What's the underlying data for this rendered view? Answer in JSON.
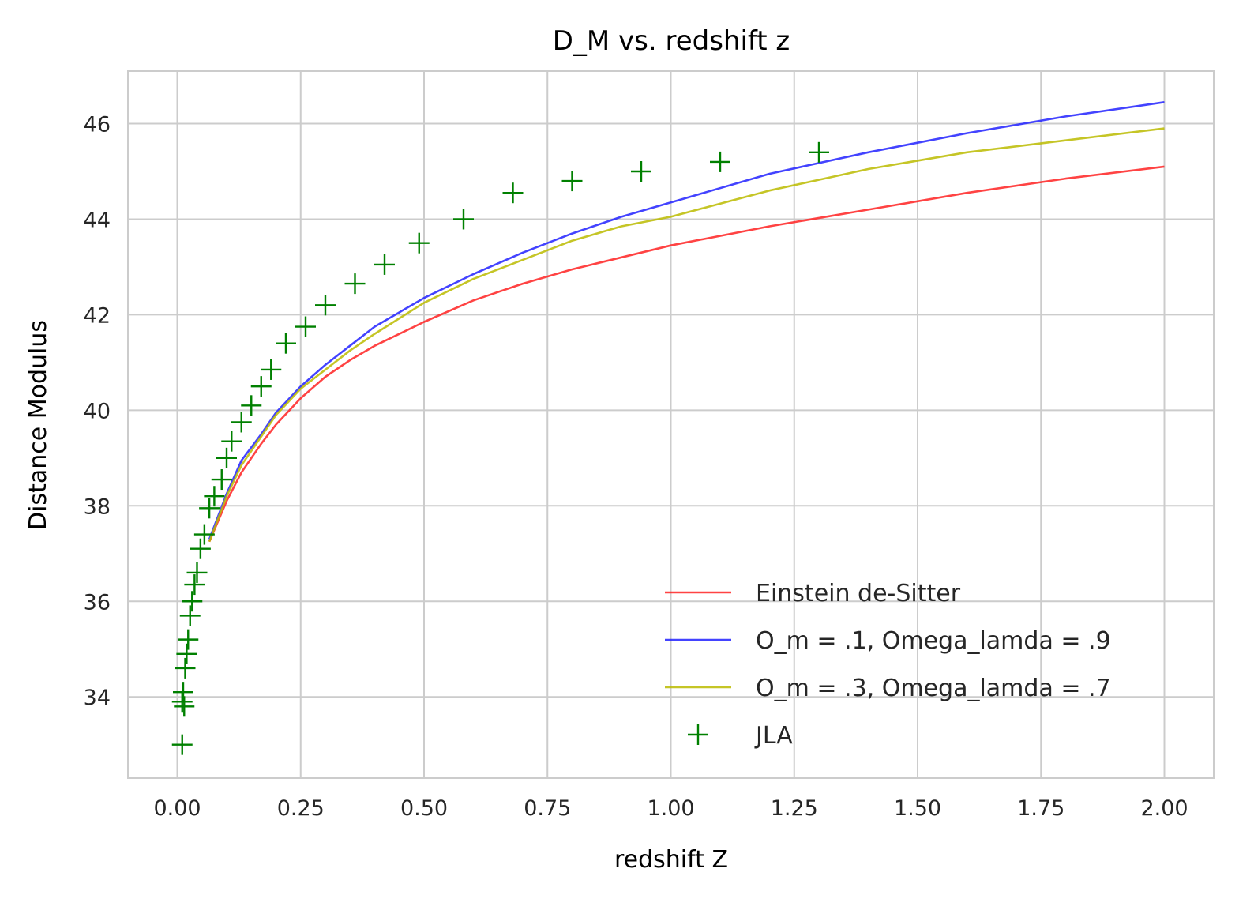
{
  "chart_data": {
    "type": "line",
    "title": "D_M vs. redshift z",
    "xlabel": "redshift Z",
    "ylabel": "Distance Modulus",
    "xlim": [
      -0.1,
      2.1
    ],
    "ylim": [
      32.3,
      47.1
    ],
    "xticks": [
      "0.00",
      "0.25",
      "0.50",
      "0.75",
      "1.00",
      "1.25",
      "1.50",
      "1.75",
      "2.00"
    ],
    "yticks": [
      "34",
      "36",
      "38",
      "40",
      "42",
      "44",
      "46"
    ],
    "grid": true,
    "legend_position": "lower right",
    "series": [
      {
        "name": "Einstein de-Sitter",
        "kind": "line",
        "color": "#ff2222",
        "x": [
          0.065,
          0.1,
          0.13,
          0.17,
          0.2,
          0.25,
          0.3,
          0.35,
          0.4,
          0.5,
          0.6,
          0.7,
          0.8,
          0.9,
          1.0,
          1.2,
          1.4,
          1.6,
          1.8,
          2.0
        ],
        "y": [
          37.25,
          38.1,
          38.7,
          39.3,
          39.7,
          40.25,
          40.7,
          41.05,
          41.35,
          41.85,
          42.3,
          42.65,
          42.95,
          43.2,
          43.45,
          43.85,
          44.2,
          44.55,
          44.85,
          45.1
        ]
      },
      {
        "name": "O_m = .1, Omega_lamda = .9",
        "kind": "line",
        "color": "#2222ff",
        "x": [
          0.065,
          0.1,
          0.13,
          0.17,
          0.2,
          0.25,
          0.3,
          0.35,
          0.4,
          0.5,
          0.6,
          0.7,
          0.8,
          0.9,
          1.0,
          1.2,
          1.4,
          1.6,
          1.8,
          2.0
        ],
        "y": [
          37.3,
          38.25,
          38.95,
          39.5,
          39.95,
          40.5,
          40.95,
          41.35,
          41.75,
          42.35,
          42.85,
          43.3,
          43.7,
          44.05,
          44.35,
          44.95,
          45.4,
          45.8,
          46.15,
          46.45
        ]
      },
      {
        "name": "O_m = .3, Omega_lamda = .7",
        "kind": "line",
        "color": "#bbbb00",
        "x": [
          0.065,
          0.1,
          0.13,
          0.17,
          0.2,
          0.25,
          0.3,
          0.35,
          0.4,
          0.5,
          0.6,
          0.7,
          0.8,
          0.9,
          1.0,
          1.2,
          1.4,
          1.6,
          1.8,
          2.0
        ],
        "y": [
          37.25,
          38.2,
          38.85,
          39.45,
          39.9,
          40.45,
          40.85,
          41.25,
          41.6,
          42.25,
          42.75,
          43.15,
          43.55,
          43.85,
          44.05,
          44.6,
          45.05,
          45.4,
          45.65,
          45.9
        ]
      },
      {
        "name": "JLA",
        "kind": "scatter",
        "marker": "+",
        "color": "#008000",
        "x": [
          0.01,
          0.01,
          0.012,
          0.014,
          0.016,
          0.019,
          0.022,
          0.026,
          0.03,
          0.035,
          0.04,
          0.047,
          0.055,
          0.065,
          0.075,
          0.09,
          0.1,
          0.11,
          0.13,
          0.15,
          0.17,
          0.19,
          0.22,
          0.26,
          0.3,
          0.36,
          0.42,
          0.49,
          0.58,
          0.68,
          0.8,
          0.94,
          1.1,
          1.3
        ],
        "y": [
          33.0,
          33.9,
          34.1,
          33.8,
          34.6,
          34.9,
          35.2,
          35.7,
          36.0,
          36.35,
          36.6,
          37.1,
          37.4,
          37.95,
          38.2,
          38.55,
          39.0,
          39.35,
          39.75,
          40.1,
          40.5,
          40.85,
          41.4,
          41.75,
          42.2,
          42.65,
          43.05,
          43.5,
          44.0,
          44.55,
          44.8,
          45.0,
          45.2,
          45.4
        ]
      }
    ]
  }
}
